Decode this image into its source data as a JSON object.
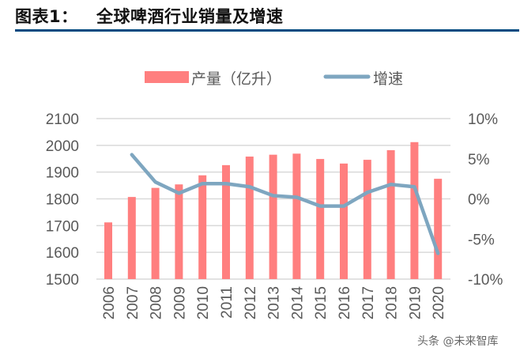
{
  "header": {
    "title": "图表1：   全球啤酒行业销量及增速"
  },
  "watermark": "头条 @未来智库",
  "colors": {
    "bar": "#ff7f7f",
    "line": "#7ea6c0",
    "grid": "#d9d9d9",
    "rule": "#004a80"
  },
  "chart_data": {
    "type": "bar+line",
    "title": "全球啤酒行业销量及增速",
    "categories": [
      "2006",
      "2007",
      "2008",
      "2009",
      "2010",
      "2011",
      "2012",
      "2013",
      "2014",
      "2015",
      "2016",
      "2017",
      "2018",
      "2019",
      "2020"
    ],
    "series": [
      {
        "name": "产量（亿升）",
        "type": "bar",
        "axis": "left",
        "values": [
          1712,
          1807,
          1841,
          1854,
          1888,
          1926,
          1958,
          1965,
          1969,
          1949,
          1932,
          1946,
          1982,
          2012,
          1875
        ]
      },
      {
        "name": "增速",
        "type": "line",
        "axis": "right",
        "values": [
          null,
          5.5,
          2.1,
          0.7,
          1.9,
          1.9,
          1.5,
          0.4,
          0.2,
          -0.9,
          -0.9,
          0.8,
          1.8,
          1.5,
          -6.8
        ]
      }
    ],
    "left_axis": {
      "ylim": [
        1500,
        2100
      ],
      "ticks": [
        2100,
        2000,
        1900,
        1800,
        1700,
        1600,
        1500
      ],
      "tick_labels": [
        "2100",
        "2000",
        "1900",
        "1800",
        "1700",
        "1600",
        "1500"
      ]
    },
    "right_axis": {
      "ylim": [
        -10,
        10
      ],
      "ticks": [
        10,
        5,
        0,
        -5,
        -10
      ],
      "tick_labels": [
        "10%",
        "5%",
        "0%",
        "-5%",
        "-10%"
      ]
    },
    "legend": {
      "placement": "top-center",
      "entries": [
        "产量（亿升）",
        "增速"
      ]
    },
    "grid": true,
    "xlabel": "",
    "ylabel": ""
  }
}
